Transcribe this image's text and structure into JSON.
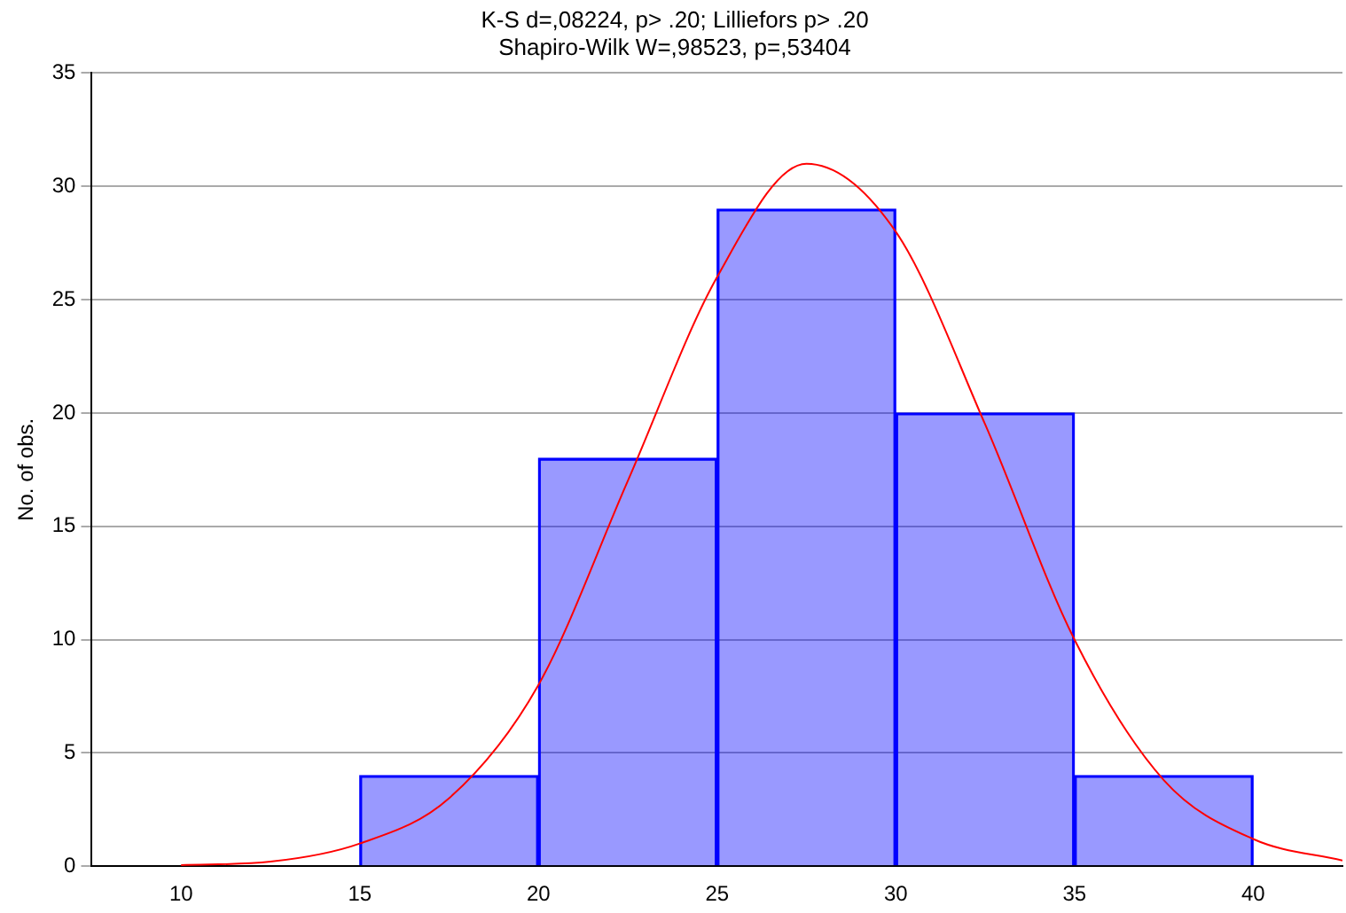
{
  "chart_data": {
    "type": "histogram",
    "title": "K-S d=,08224, p> .20; Lilliefors p> .20",
    "subtitle": "Shapiro-Wilk W=,98523, p=,53404",
    "ylabel": "No. of obs.",
    "bins": [
      15,
      20,
      25,
      30,
      35,
      40
    ],
    "values": [
      4,
      18,
      29,
      20,
      4
    ],
    "color": "#0000ff",
    "series": [
      {
        "type": "line",
        "color": "#ff0000",
        "x": [
          10,
          12.5,
          15,
          17.5,
          20,
          22.5,
          25,
          27.5,
          30,
          32.5,
          35,
          37.5,
          40,
          42.5
        ],
        "values": [
          0.05,
          0.2,
          1,
          3,
          8,
          17,
          26,
          31,
          28,
          19.5,
          10,
          3.8,
          1.2,
          0.25
        ]
      }
    ],
    "xlim": [
      7.5,
      42.5
    ],
    "xticks": [
      10,
      15,
      20,
      25,
      30,
      35,
      40
    ],
    "ylim": [
      0,
      35
    ],
    "yticks": [
      0,
      5,
      10,
      15,
      20,
      25,
      30,
      35
    ],
    "grid": "y",
    "legend": false,
    "marker": "none",
    "line_style": "solid"
  }
}
